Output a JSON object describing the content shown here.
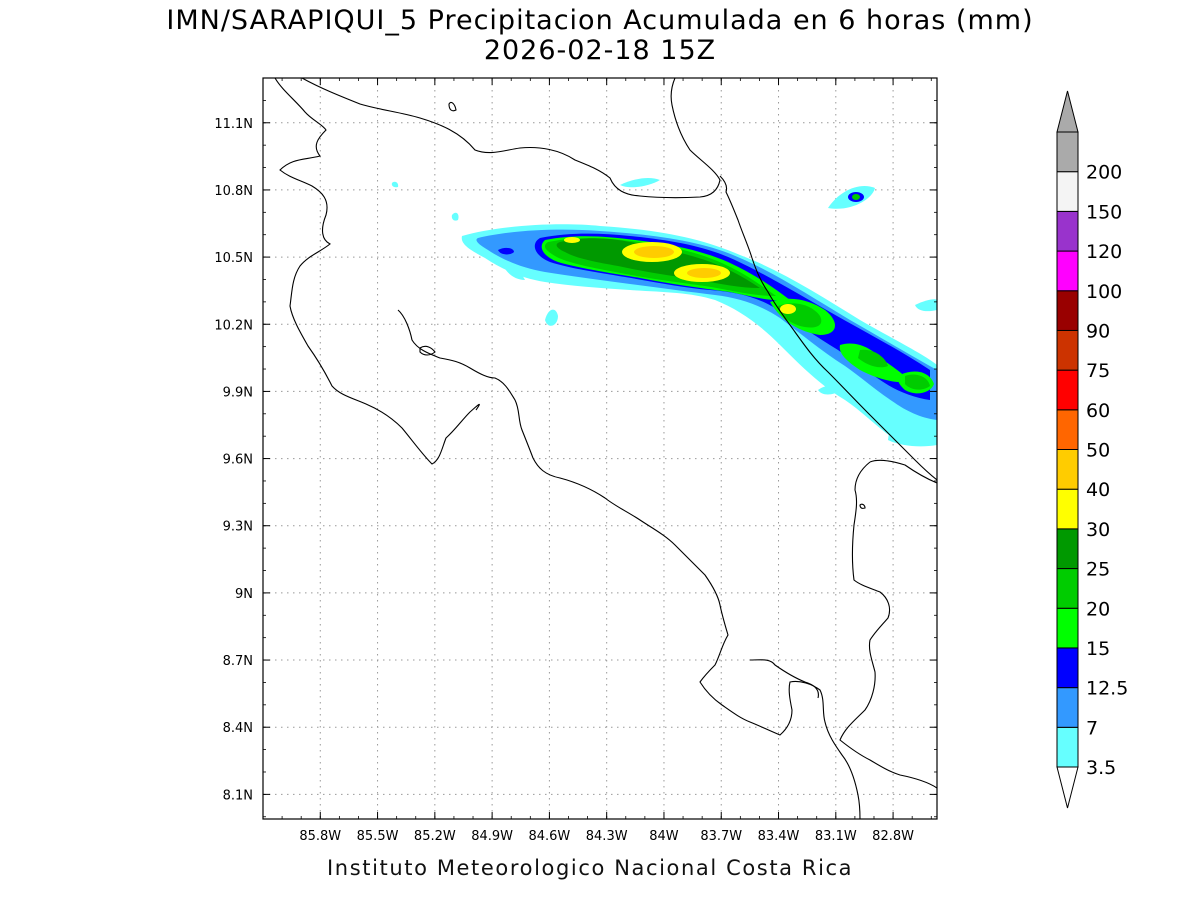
{
  "title": {
    "line1": "IMN/SARAPIQUI_5 Precipitacion Acumulada en 6 horas (mm)",
    "line2": "2026-02-18 15Z"
  },
  "footer": "Instituto Meteorologico Nacional Costa Rica",
  "axes": {
    "lon_range": [
      -86.1,
      -82.57
    ],
    "lat_range": [
      7.99,
      11.3
    ],
    "lon_ticks": [
      {
        "value": -85.8,
        "label": "85.8W"
      },
      {
        "value": -85.5,
        "label": "85.5W"
      },
      {
        "value": -85.2,
        "label": "85.2W"
      },
      {
        "value": -84.9,
        "label": "84.9W"
      },
      {
        "value": -84.6,
        "label": "84.6W"
      },
      {
        "value": -84.3,
        "label": "84.3W"
      },
      {
        "value": -84.0,
        "label": "84W"
      },
      {
        "value": -83.7,
        "label": "83.7W"
      },
      {
        "value": -83.4,
        "label": "83.4W"
      },
      {
        "value": -83.1,
        "label": "83.1W"
      },
      {
        "value": -82.8,
        "label": "82.8W"
      }
    ],
    "lat_ticks": [
      {
        "value": 11.1,
        "label": "11.1N"
      },
      {
        "value": 10.8,
        "label": "10.8N"
      },
      {
        "value": 10.5,
        "label": "10.5N"
      },
      {
        "value": 10.2,
        "label": "10.2N"
      },
      {
        "value": 9.9,
        "label": "9.9N"
      },
      {
        "value": 9.6,
        "label": "9.6N"
      },
      {
        "value": 9.3,
        "label": "9.3N"
      },
      {
        "value": 9.0,
        "label": "9N"
      },
      {
        "value": 8.7,
        "label": "8.7N"
      },
      {
        "value": 8.4,
        "label": "8.4N"
      },
      {
        "value": 8.1,
        "label": "8.1N"
      }
    ],
    "grid": true
  },
  "legend": {
    "placement": "right",
    "levels": [
      {
        "label": "3.5",
        "color": "#66ffff"
      },
      {
        "label": "7",
        "color": "#3399ff"
      },
      {
        "label": "12.5",
        "color": "#0000ff"
      },
      {
        "label": "15",
        "color": "#00ff00"
      },
      {
        "label": "20",
        "color": "#00cc00"
      },
      {
        "label": "25",
        "color": "#009900"
      },
      {
        "label": "30",
        "color": "#ffff00"
      },
      {
        "label": "40",
        "color": "#ffcc00"
      },
      {
        "label": "50",
        "color": "#ff6600"
      },
      {
        "label": "60",
        "color": "#ff0000"
      },
      {
        "label": "75",
        "color": "#cc3300"
      },
      {
        "label": "90",
        "color": "#990000"
      },
      {
        "label": "100",
        "color": "#ff00ff"
      },
      {
        "label": "120",
        "color": "#9933cc"
      },
      {
        "label": "150",
        "color": "#f4f4f4"
      },
      {
        "label": "200",
        "color": "#aaaaaa"
      }
    ],
    "bottom_triangle_color": "#ffffff",
    "top_triangle_color": "#aaaaaa"
  },
  "precip_cells": [
    {
      "lon": -84.38,
      "lat": 10.56,
      "rx": 0.1,
      "ry": 0.03,
      "level": 3
    },
    {
      "lon": -84.12,
      "lat": 10.55,
      "rx": 0.14,
      "ry": 0.035,
      "level": 4
    },
    {
      "lon": -83.8,
      "lat": 10.45,
      "rx": 0.14,
      "ry": 0.035,
      "level": 4
    },
    {
      "lon": -83.26,
      "lat": 10.27,
      "rx": 0.05,
      "ry": 0.025,
      "level": 4
    },
    {
      "lon": -82.78,
      "lat": 10.78,
      "rx": 0.03,
      "ry": 0.02,
      "level": 3
    }
  ]
}
